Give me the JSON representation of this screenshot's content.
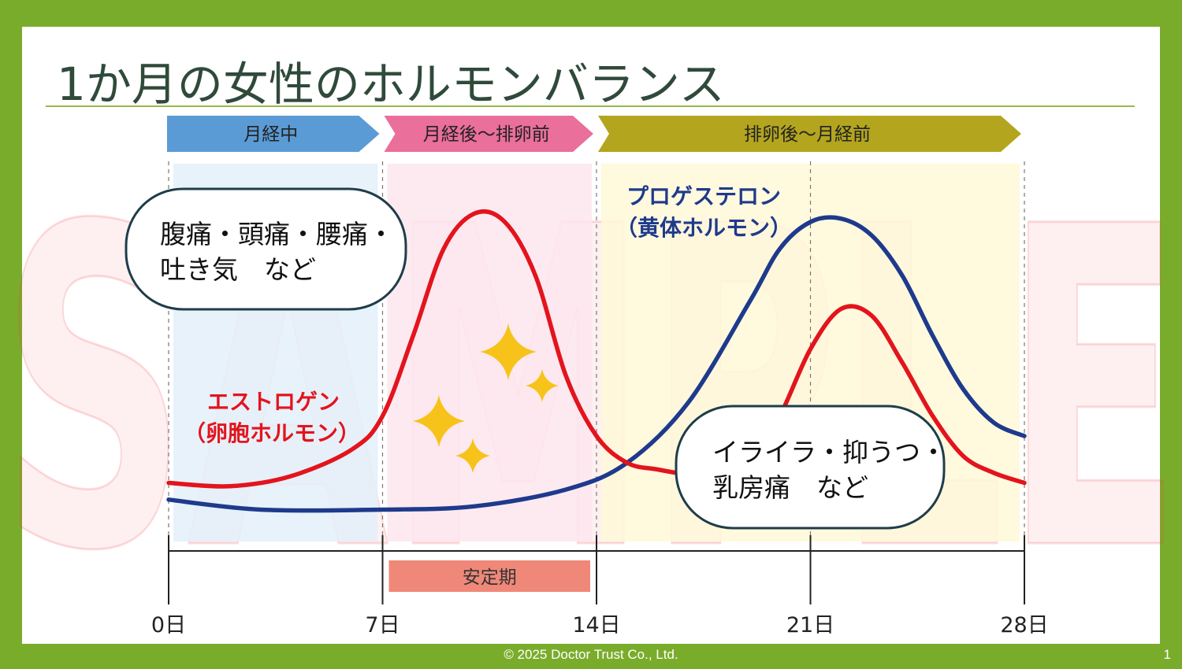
{
  "watermark": "SAMPLE",
  "slide": {
    "title": "1か月の女性のホルモンバランス",
    "footer": "© 2025 Doctor Trust Co., Ltd.",
    "page_number": "1"
  },
  "phases": [
    {
      "label": "月経中",
      "color": "#5b9bd5",
      "bg": "#e3f0fa"
    },
    {
      "label": "月経後～排卵前",
      "color": "#ea6f9a",
      "bg": "#fde6ee"
    },
    {
      "label": "排卵後～月経前",
      "color": "#b3a51e",
      "bg": "#fff8d8"
    }
  ],
  "stable_period": {
    "label": "安定期",
    "color": "#ef8878",
    "start_day": 7,
    "end_day": 14
  },
  "annotations": {
    "symptoms_menstruation": [
      "腹痛・頭痛・腰痛・",
      "吐き気　など"
    ],
    "symptoms_premenstrual": [
      "イライラ・抑うつ・",
      "乳房痛　など"
    ],
    "estrogen_label": [
      "エストロゲン",
      "（卵胞ホルモン）"
    ],
    "progesterone_label": [
      "プロゲステロン",
      "（黄体ホルモン）"
    ]
  },
  "chart_data": {
    "type": "line",
    "title": "1か月の女性のホルモンバランス",
    "x_unit": "日",
    "xlim": [
      0,
      28
    ],
    "ylim": [
      0,
      1
    ],
    "xticks": [
      0,
      7,
      14,
      21,
      28
    ],
    "xtick_labels": [
      "0日",
      "7日",
      "14日",
      "21日",
      "28日"
    ],
    "grid": "dashed verticals at 0, 7, 14, 21, 28",
    "legend": "none (inline labels)",
    "series": [
      {
        "name": "エストロゲン（卵胞ホルモン）",
        "color": "#e3141d",
        "points": [
          [
            0,
            0.18
          ],
          [
            2,
            0.17
          ],
          [
            4,
            0.2
          ],
          [
            6,
            0.28
          ],
          [
            7,
            0.38
          ],
          [
            8,
            0.62
          ],
          [
            9,
            0.88
          ],
          [
            10,
            0.985
          ],
          [
            11,
            0.96
          ],
          [
            12,
            0.8
          ],
          [
            13,
            0.5
          ],
          [
            14,
            0.32
          ],
          [
            15,
            0.24
          ],
          [
            16,
            0.22
          ],
          [
            17,
            0.205
          ],
          [
            18,
            0.2
          ],
          [
            19,
            0.23
          ],
          [
            20,
            0.38
          ],
          [
            21,
            0.58
          ],
          [
            22,
            0.7
          ],
          [
            23,
            0.68
          ],
          [
            24,
            0.54
          ],
          [
            25,
            0.38
          ],
          [
            26,
            0.26
          ],
          [
            27,
            0.21
          ],
          [
            28,
            0.18
          ]
        ]
      },
      {
        "name": "プロゲステロン（黄体ホルモン）",
        "color": "#1e3a8c",
        "points": [
          [
            0,
            0.13
          ],
          [
            3,
            0.1
          ],
          [
            7,
            0.1
          ],
          [
            10,
            0.11
          ],
          [
            13,
            0.16
          ],
          [
            15,
            0.24
          ],
          [
            17,
            0.42
          ],
          [
            19,
            0.72
          ],
          [
            20,
            0.88
          ],
          [
            21,
            0.96
          ],
          [
            22,
            0.97
          ],
          [
            23,
            0.92
          ],
          [
            24,
            0.8
          ],
          [
            25,
            0.62
          ],
          [
            26,
            0.46
          ],
          [
            27,
            0.36
          ],
          [
            28,
            0.32
          ]
        ]
      }
    ]
  }
}
